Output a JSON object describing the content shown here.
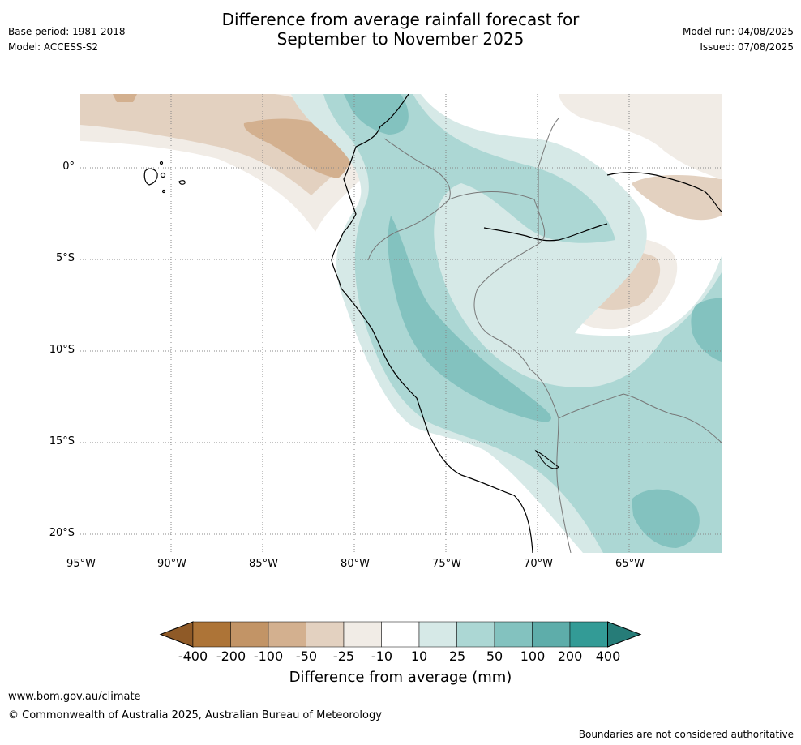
{
  "title_line1": "Difference from average rainfall forecast for",
  "title_line2": "September to November 2025",
  "meta_left": {
    "base_period": "Base period: 1981-2018",
    "model": "Model: ACCESS-S2"
  },
  "meta_right": {
    "model_run": "Model run: 04/08/2025",
    "issued": "Issued: 07/08/2025"
  },
  "axes": {
    "y_ticks": [
      "0°",
      "5°S",
      "10°S",
      "15°S",
      "20°S"
    ],
    "x_ticks": [
      "95°W",
      "90°W",
      "85°W",
      "80°W",
      "75°W",
      "70°W",
      "65°W"
    ]
  },
  "colorbar": {
    "title": "Difference from average (mm)",
    "labels": [
      "-400",
      "-200",
      "-100",
      "-50",
      "-25",
      "-10",
      "10",
      "25",
      "50",
      "100",
      "200",
      "400"
    ],
    "colors": [
      "#8f5a27",
      "#ad7437",
      "#c29466",
      "#d3b08f",
      "#e3d1c0",
      "#f1ece6",
      "#ffffff",
      "#d6e9e7",
      "#acd7d4",
      "#83c2bf",
      "#5eadaa",
      "#339b96",
      "#267c78"
    ]
  },
  "footer": {
    "url": "www.bom.gov.au/climate",
    "copyright": "© Commonwealth of Australia 2025, Australian Bureau of Meteorology",
    "note": "Boundaries are not considered authoritative"
  }
}
